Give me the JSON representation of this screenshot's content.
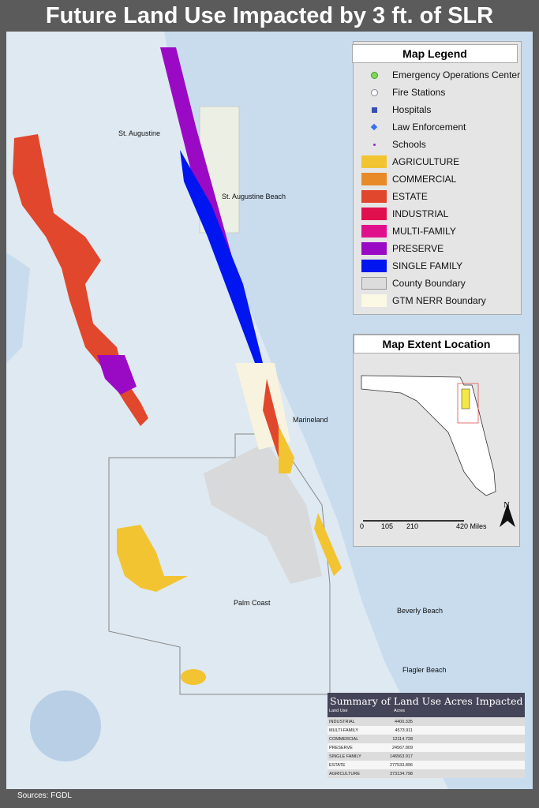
{
  "title": "Future Land Use Impacted by 3 ft. of SLR",
  "source": "Sources: FGDL",
  "legend": {
    "title": "Map Legend",
    "items": [
      {
        "label": "Emergency Operations Center",
        "symbol": "green-circle",
        "color": "#7ed957"
      },
      {
        "label": "Fire Stations",
        "symbol": "fire-station-icon",
        "color": "#ffffff"
      },
      {
        "label": "Hospitals",
        "symbol": "hospital-icon",
        "color": "#3a4fb5"
      },
      {
        "label": "Law Enforcement",
        "symbol": "diamond",
        "color": "#3b6ff0"
      },
      {
        "label": "Schools",
        "symbol": "dot",
        "color": "#9b1fd6"
      },
      {
        "label": "AGRICULTURE",
        "symbol": "swatch",
        "color": "#f2c431"
      },
      {
        "label": "COMMERCIAL",
        "symbol": "swatch",
        "color": "#e88a28"
      },
      {
        "label": "ESTATE",
        "symbol": "swatch",
        "color": "#e0472c"
      },
      {
        "label": "INDUSTRIAL",
        "symbol": "swatch",
        "color": "#e0104f"
      },
      {
        "label": "MULTI-FAMILY",
        "symbol": "swatch",
        "color": "#e0108c"
      },
      {
        "label": "PRESERVE",
        "symbol": "swatch",
        "color": "#9a0ac4"
      },
      {
        "label": "SINGLE FAMILY",
        "symbol": "swatch",
        "color": "#0015f0"
      },
      {
        "label": "County Boundary",
        "symbol": "swatch",
        "color": "#dcdcdc"
      },
      {
        "label": "GTM NERR Boundary",
        "symbol": "swatch",
        "color": "#fbf8e3"
      }
    ]
  },
  "extent": {
    "title": "Map Extent Location",
    "scale_labels": [
      "0",
      "105",
      "210",
      "420 Miles"
    ],
    "north": "N"
  },
  "places": [
    "St. Augustine",
    "St. Augustine Beach",
    "Marineland",
    "Palm Coast",
    "Beverly Beach",
    "Flagler Beach"
  ],
  "summary": {
    "title": "Summary of Land Use Acres Impacted",
    "columns": [
      "Land Use",
      "Acres"
    ],
    "rows": [
      {
        "use": "INDUSTRIAL",
        "acres": "4400.335"
      },
      {
        "use": "MULTI-FAMILY",
        "acres": "4573.911"
      },
      {
        "use": "COMMERCIAL",
        "acres": "12114.728"
      },
      {
        "use": "PRESERVE",
        "acres": "24567.809"
      },
      {
        "use": "SINGLE FAMILY",
        "acres": "146563.917"
      },
      {
        "use": "ESTATE",
        "acres": "277533.896"
      },
      {
        "use": "AGRICULTURE",
        "acres": "373134.798"
      }
    ]
  }
}
